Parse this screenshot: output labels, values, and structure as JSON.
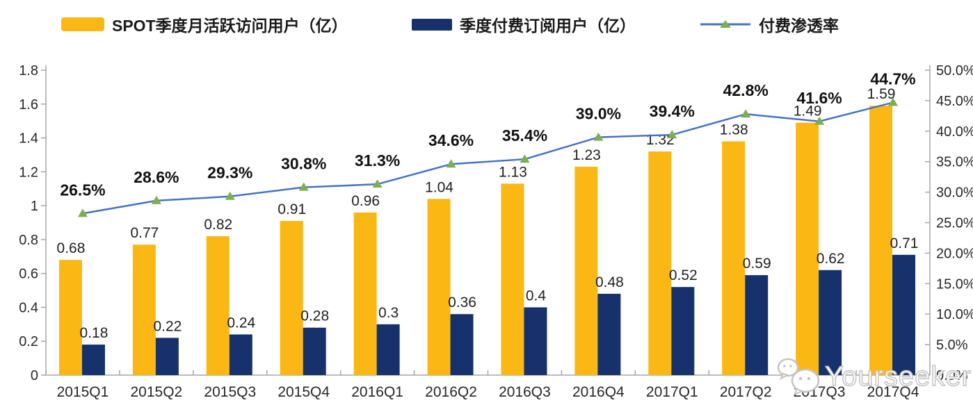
{
  "legend": {
    "items": [
      {
        "label": "SPOT季度月活跃访问用户（亿）"
      },
      {
        "label": "季度付费订阅用户（亿）"
      },
      {
        "label": "付费渗透率"
      }
    ]
  },
  "watermark": {
    "text": "Yourseeker"
  },
  "colors": {
    "mau_bar": "#FBB814",
    "subs_bar": "#16316C",
    "line": "#4472C4",
    "marker": "#7FAE4F",
    "axis": "#A6A6A6",
    "label": "#262626"
  },
  "chart_data": {
    "type": "bar",
    "subtype": "clustered-bars-with-line-on-secondary-axis",
    "title": "",
    "xlabel": "",
    "ylabel": "",
    "grid": false,
    "legend_position": "top",
    "categories": [
      "2015Q1",
      "2015Q2",
      "2015Q3",
      "2015Q4",
      "2016Q1",
      "2016Q2",
      "2016Q3",
      "2016Q4",
      "2017Q1",
      "2017Q2",
      "2017Q3",
      "2017Q4"
    ],
    "series": [
      {
        "name": "SPOT季度月活跃访问用户（亿）",
        "type": "bar",
        "axis": "left",
        "values": [
          0.68,
          0.77,
          0.82,
          0.91,
          0.96,
          1.04,
          1.13,
          1.23,
          1.32,
          1.38,
          1.49,
          1.59
        ],
        "labels": [
          "0.68",
          "0.77",
          "0.82",
          "0.91",
          "0.96",
          "1.04",
          "1.13",
          "1.23",
          "1.32",
          "1.38",
          "1.49",
          "1.59"
        ]
      },
      {
        "name": "季度付费订阅用户（亿）",
        "type": "bar",
        "axis": "left",
        "values": [
          0.18,
          0.22,
          0.24,
          0.28,
          0.3,
          0.36,
          0.4,
          0.48,
          0.52,
          0.59,
          0.62,
          0.71
        ],
        "labels": [
          "0.18",
          "0.22",
          "0.24",
          "0.28",
          "0.3",
          "0.36",
          "0.4",
          "0.48",
          "0.52",
          "0.59",
          "0.62",
          "0.71"
        ]
      },
      {
        "name": "付费渗透率",
        "type": "line",
        "axis": "right",
        "values": [
          26.5,
          28.6,
          29.3,
          30.8,
          31.3,
          34.6,
          35.4,
          39.0,
          39.4,
          42.8,
          41.6,
          44.7
        ],
        "labels": [
          "26.5%",
          "28.6%",
          "29.3%",
          "30.8%",
          "31.3%",
          "34.6%",
          "35.4%",
          "39.0%",
          "39.4%",
          "42.8%",
          "41.6%",
          "44.7%"
        ]
      }
    ],
    "left_axis": {
      "min": 0,
      "max": 1.8,
      "step": 0.2,
      "tick_labels": [
        "0",
        "0.2",
        "0.4",
        "0.6",
        "0.8",
        "1",
        "1.2",
        "1.4",
        "1.6",
        "1.8"
      ]
    },
    "right_axis": {
      "min": 0,
      "max": 50,
      "step": 5,
      "tick_labels": [
        "0.0%",
        "5.0%",
        "10.0%",
        "15.0%",
        "20.0%",
        "25.0%",
        "30.0%",
        "35.0%",
        "40.0%",
        "45.0%",
        "50.0%"
      ]
    }
  }
}
